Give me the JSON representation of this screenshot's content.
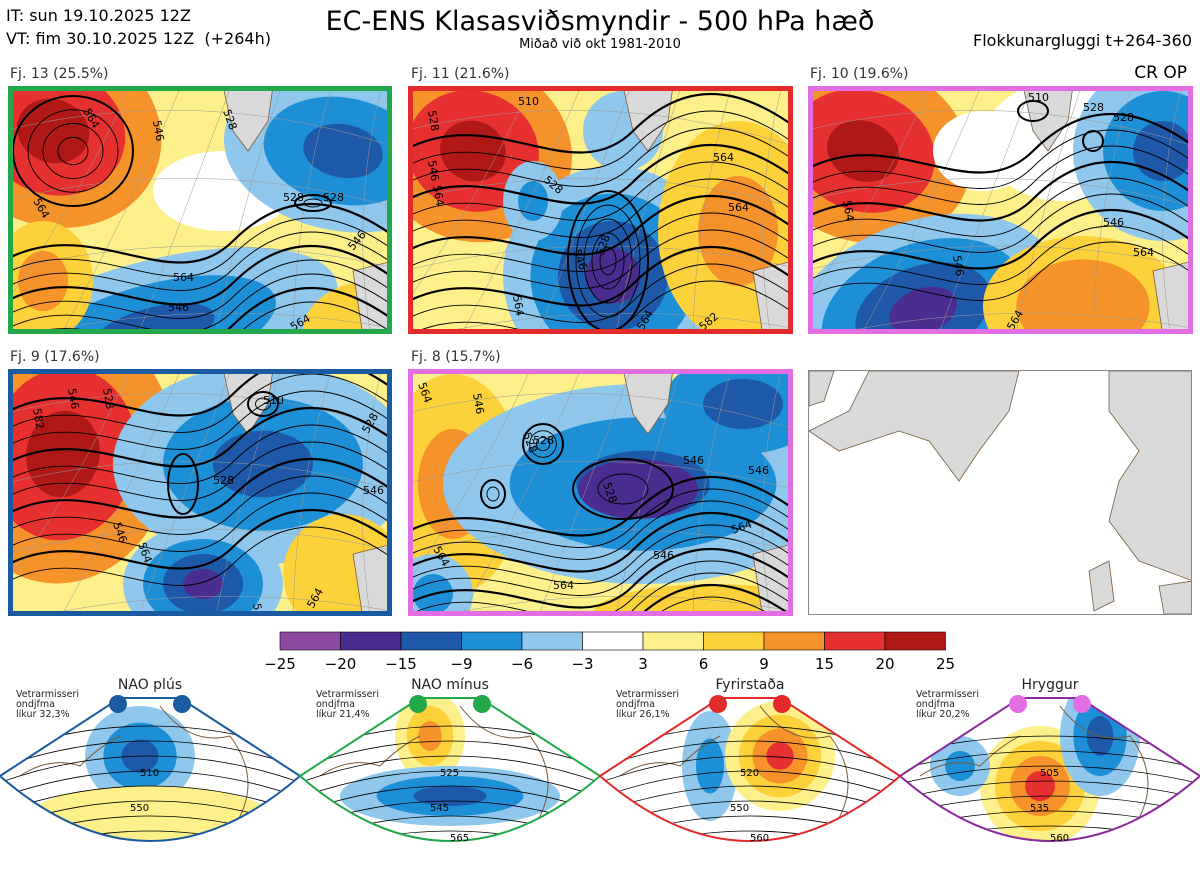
{
  "header": {
    "init_line": "IT: sun 19.10.2025 12Z",
    "valid_line": "VT: fim 30.10.2025 12Z  (+264h)",
    "title": "EC-ENS Klasasviðsmyndir - 500 hPa hæð",
    "subtitle": "Miðað við okt 1981-2010",
    "window": "Flokkunargluggi t+264-360",
    "cr_op": "CR OP"
  },
  "colors": {
    "green": "#22a84a",
    "red": "#e32b2b",
    "magenta": "#e36ee3",
    "blue": "#1a5aa0",
    "purple": "#8a2a9a",
    "land": "#d9d9d9",
    "coast": "#7a5a3a"
  },
  "panels": [
    {
      "label": "Fj. 13 (25.5%)",
      "border": "green",
      "contours": [
        "564",
        "564",
        "546",
        "528",
        "528",
        "528",
        "546",
        "546",
        "564",
        "564"
      ]
    },
    {
      "label": "Fj. 11 (21.6%)",
      "border": "red",
      "contours": [
        "528",
        "510",
        "546",
        "564",
        "528",
        "546",
        "564",
        "564",
        "528",
        "564",
        "564",
        "582"
      ]
    },
    {
      "label": "Fj. 10 (19.6%)",
      "border": "magenta",
      "contours": [
        "528",
        "510",
        "528",
        "564",
        "546",
        "546",
        "564",
        "564"
      ]
    },
    {
      "label": "Fj. 9 (17.6%)",
      "border": "blue",
      "contours": [
        "582",
        "546",
        "528",
        "510",
        "528",
        "528",
        "546",
        "546",
        "564",
        "546",
        "564"
      ]
    },
    {
      "label": "Fj. 8 (15.7%)",
      "border": "magenta",
      "contours": [
        "564",
        "546",
        "528",
        "528",
        "546",
        "528",
        "546",
        "546",
        "564",
        "564",
        "564"
      ]
    }
  ],
  "chart_data": {
    "type": "heatmap",
    "title": "EC-ENS Klasasviðsmyndir - 500 hPa hæð",
    "subtitle": "Miðað við okt 1981-2010",
    "clusters": [
      {
        "name": "Fj. 13",
        "share_percent": 25.5
      },
      {
        "name": "Fj. 11",
        "share_percent": 21.6
      },
      {
        "name": "Fj. 10",
        "share_percent": 19.6
      },
      {
        "name": "Fj. 9",
        "share_percent": 17.6
      },
      {
        "name": "Fj. 8",
        "share_percent": 15.7
      }
    ],
    "colorbar": {
      "ticks": [
        "−25",
        "−20",
        "−15",
        "−9",
        "−6",
        "−3",
        "3",
        "6",
        "9",
        "15",
        "20",
        "25"
      ],
      "colors": [
        "#8e4aa0",
        "#4a2d8f",
        "#1e58a8",
        "#1c8fd6",
        "#8fc8ec",
        "#ffffff",
        "#fdf08a",
        "#fcd13a",
        "#f5922a",
        "#e73030",
        "#b01818"
      ]
    },
    "regimes": [
      {
        "name": "NAO plús",
        "season": "Vetrarmisseri",
        "type_word": "ondjfma",
        "prob_text": "líkur 32,3%",
        "probability": 32.3,
        "dot_color": "blue",
        "contours": [
          "510",
          "550"
        ]
      },
      {
        "name": "NAO mínus",
        "season": "Vetrarmisseri",
        "type_word": "ondjfma",
        "prob_text": "líkur 21,4%",
        "probability": 21.4,
        "dot_color": "green",
        "contours": [
          "525",
          "545",
          "565"
        ]
      },
      {
        "name": "Fyrirstaða",
        "season": "Vetrarmisseri",
        "type_word": "ondjfma",
        "prob_text": "líkur 26,1%",
        "probability": 26.1,
        "dot_color": "red",
        "contours": [
          "520",
          "550",
          "560"
        ]
      },
      {
        "name": "Hryggur",
        "season": "Vetrarmisseri",
        "type_word": "ondjfma",
        "prob_text": "líkur 20,2%",
        "probability": 20.2,
        "dot_color": "magenta",
        "contours": [
          "505",
          "535",
          "560"
        ]
      }
    ]
  }
}
